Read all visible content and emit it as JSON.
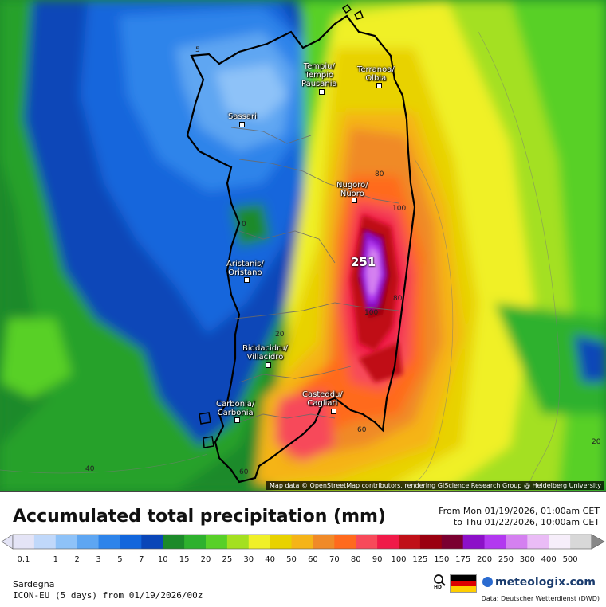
{
  "map": {
    "attribution": "Map data © OpenStreetMap contributors, rendering GIScience Research Group @ Heidelberg University",
    "max_value_label": "251",
    "cities": [
      {
        "label": "Tempiu/\nTempio\nPausania"
      },
      {
        "label": "Terranoa/\nOlbia"
      },
      {
        "label": "Sassari"
      },
      {
        "label": "Nugoro/\nNuoro"
      },
      {
        "label": "Aristanis/\nOristano"
      },
      {
        "label": "Biddacidru/\nVillacidro"
      },
      {
        "label": "Casteddu/\nCagliari"
      },
      {
        "label": "Carbonia/\nCarbonia"
      }
    ],
    "contour_labels": [
      "5",
      "0",
      "80",
      "100",
      "80",
      "100",
      "20",
      "60",
      "60",
      "40",
      "20"
    ]
  },
  "footer": {
    "title": "Accumulated total precipitation (mm)",
    "period_from": "From Mon 01/19/2026, 01:00am CET",
    "period_to": "to Thu 01/22/2026, 10:00am CET",
    "region": "Sardegna",
    "model": "ICON-EU (5 days) from 01/19/2026/00z",
    "brand": "meteologix.com",
    "zoom_label": "HD",
    "data_source": "Data: Deutscher Wetterdienst (DWD)"
  },
  "colorbar": {
    "ticks": [
      "0.1",
      "1",
      "2",
      "3",
      "5",
      "7",
      "10",
      "15",
      "20",
      "25",
      "30",
      "40",
      "50",
      "60",
      "70",
      "80",
      "90",
      "100",
      "125",
      "150",
      "175",
      "200",
      "250",
      "300",
      "400",
      "500"
    ],
    "colors": [
      "#e4e4f6",
      "#c0d8fa",
      "#8ec2f8",
      "#5ea6f2",
      "#2e84ea",
      "#1266dc",
      "#0a46b8",
      "#1c8a2a",
      "#2eb12e",
      "#58d028",
      "#a4e020",
      "#f0f028",
      "#e8d200",
      "#f5b418",
      "#f08a28",
      "#ff6a1e",
      "#f74a5a",
      "#f01a48",
      "#c01018",
      "#9a0010",
      "#7a0030",
      "#8c10c8",
      "#b238f0",
      "#d480f0",
      "#eabcf6",
      "#f6eefa",
      "#d8d8d8"
    ]
  }
}
